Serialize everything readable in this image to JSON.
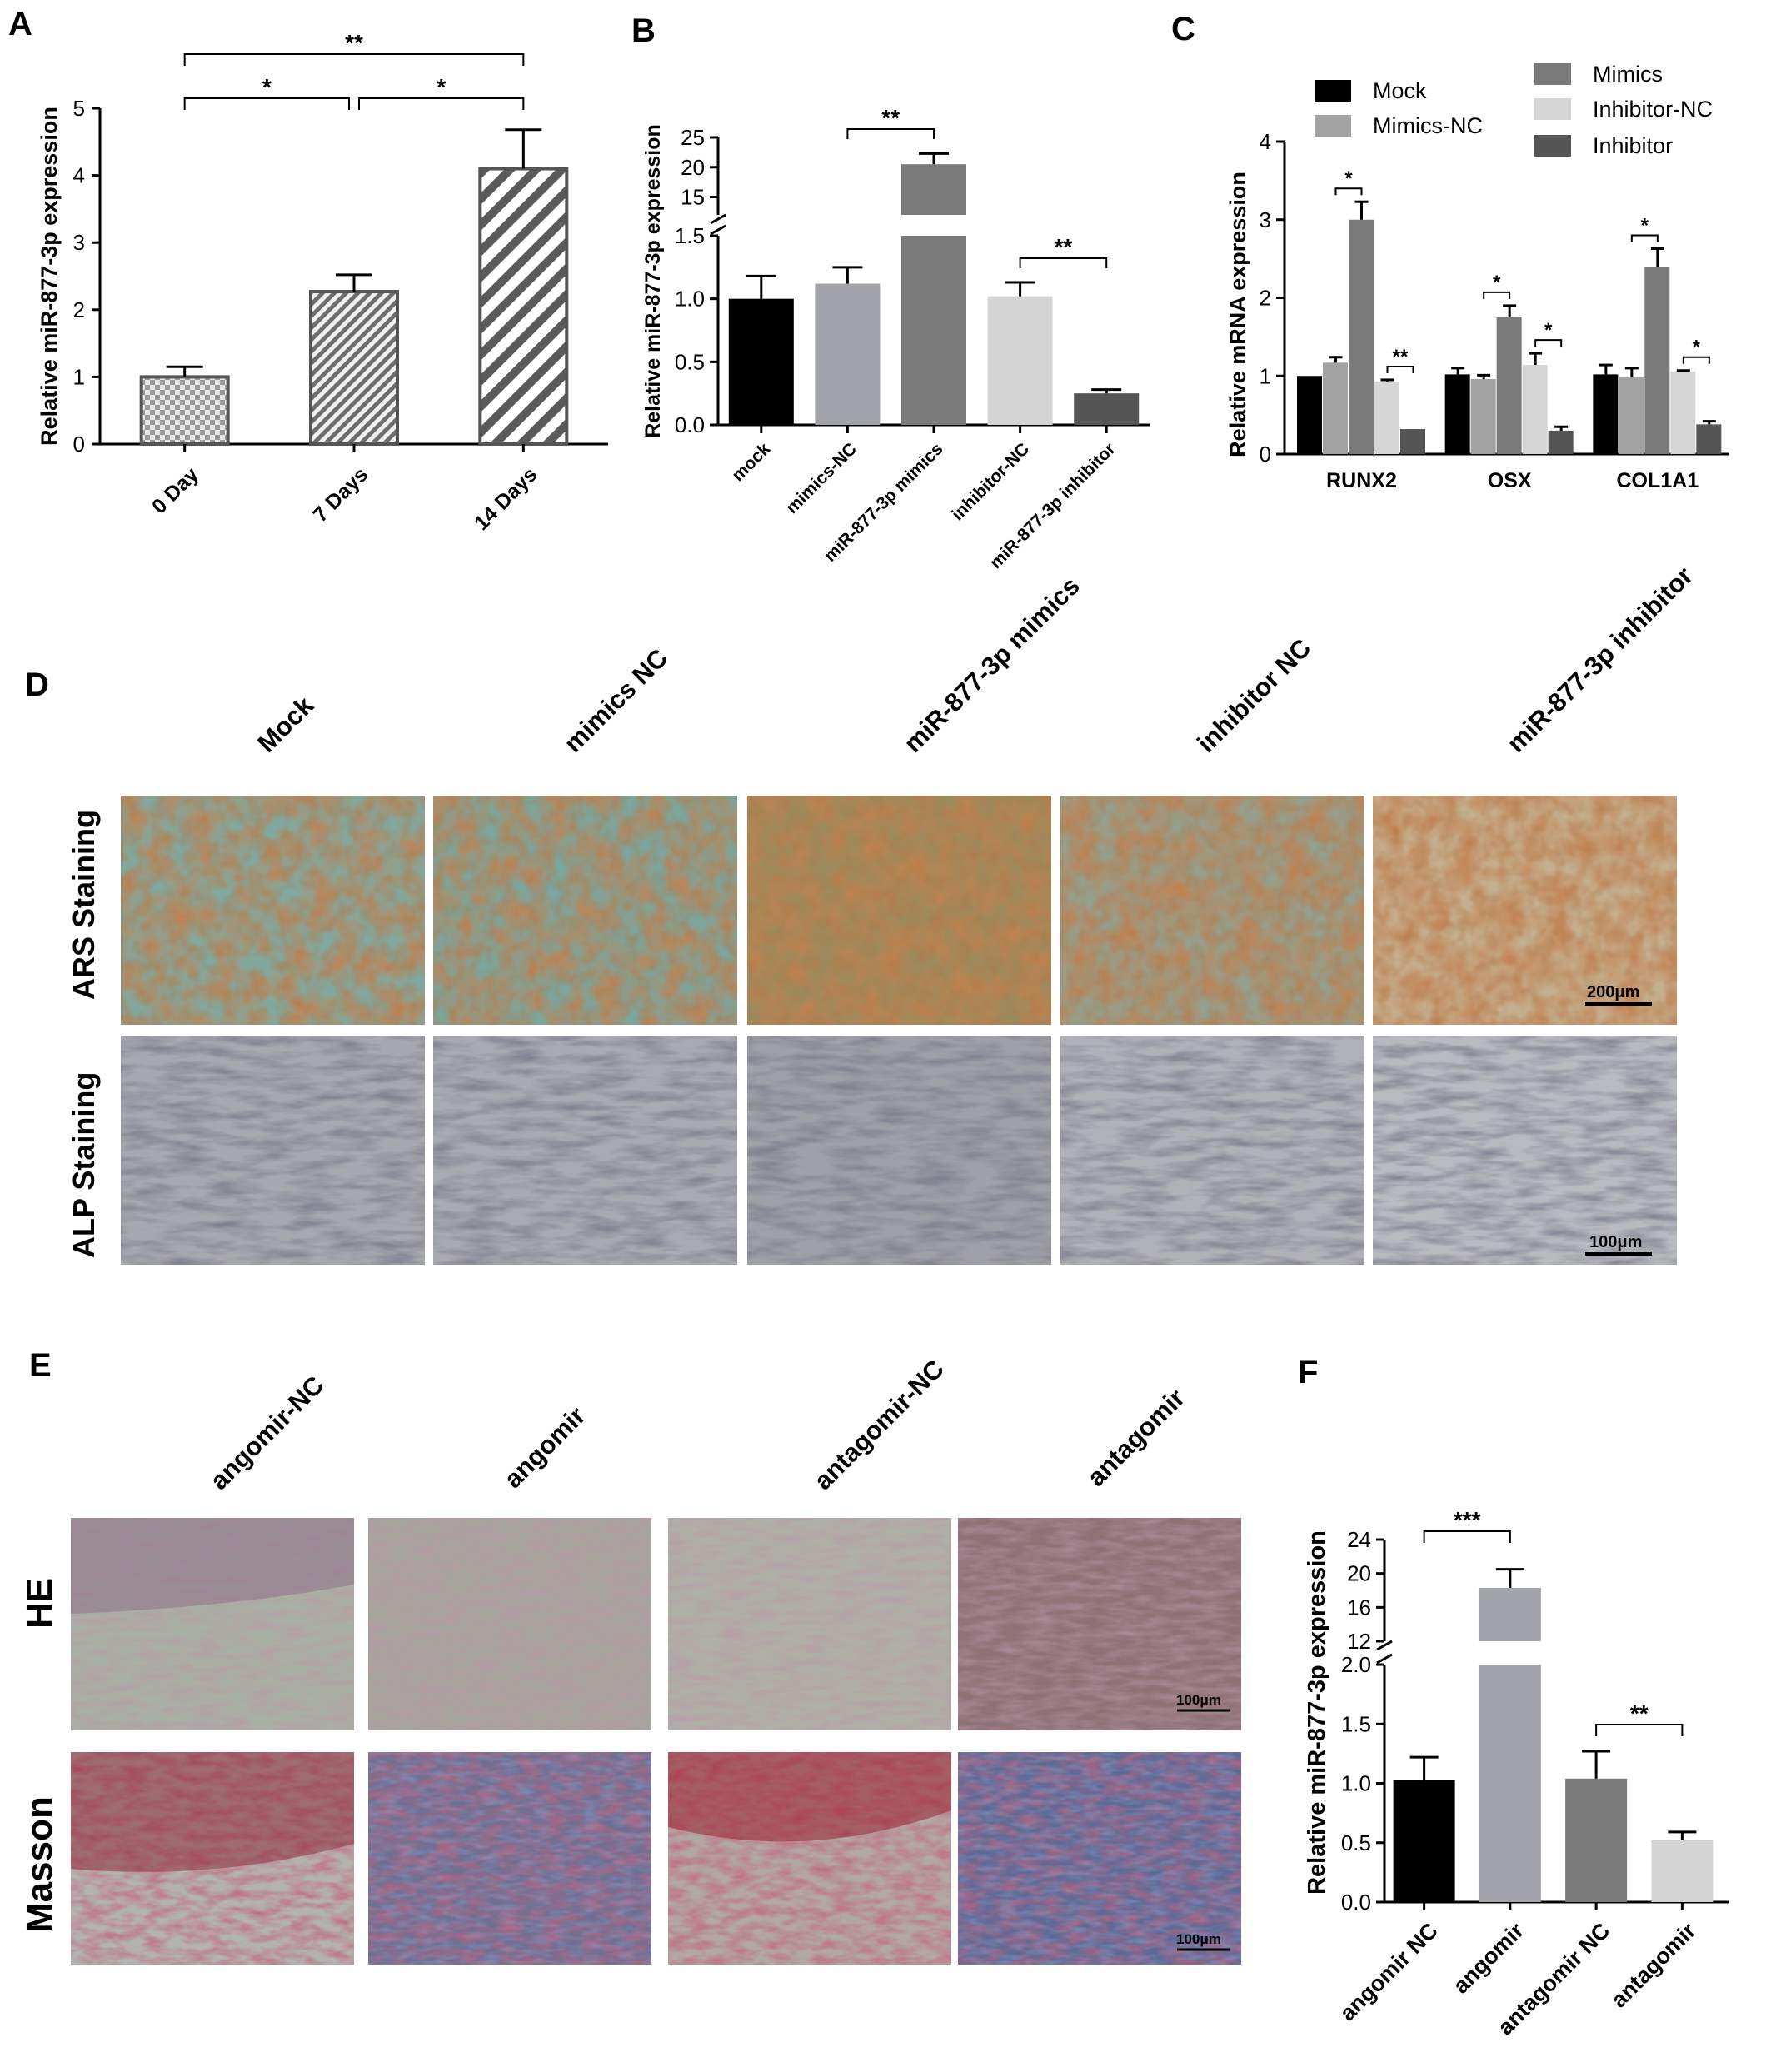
{
  "panels": {
    "A": "A",
    "B": "B",
    "C": "C",
    "D": "D",
    "E": "E",
    "F": "F"
  },
  "chart_data": [
    {
      "id": "A",
      "type": "bar",
      "ylabel": "Relative miR-877-3p expression",
      "ylim": [
        0,
        5
      ],
      "yticks": [
        "0",
        "1",
        "2",
        "3",
        "4",
        "5"
      ],
      "categories": [
        "0 Day",
        "7 Days",
        "14 Days"
      ],
      "values": [
        1.0,
        2.27,
        4.1
      ],
      "errors": [
        0.15,
        0.25,
        0.58
      ],
      "patterns": [
        "checker",
        "diagonal-fine",
        "diagonal-wide"
      ],
      "significance": [
        {
          "from": 0,
          "to": 2,
          "label": "**"
        },
        {
          "from": 0,
          "to": 1,
          "label": "*"
        },
        {
          "from": 1,
          "to": 2,
          "label": "*"
        }
      ]
    },
    {
      "id": "B",
      "type": "bar",
      "ylabel": "Relative miR-877-3p expression",
      "axis_break": {
        "lower": [
          0,
          1.5
        ],
        "upper": [
          12,
          25
        ]
      },
      "yticks_lower": [
        "0.0",
        "0.5",
        "1.0",
        "1.5"
      ],
      "yticks_upper": [
        "15",
        "20",
        "25"
      ],
      "categories": [
        "mock",
        "mimics-NC",
        "miR-877-3p mimics",
        "inhibitor-NC",
        "miR-877-3p inhibitor"
      ],
      "values": [
        1.0,
        1.12,
        20.5,
        1.02,
        0.25
      ],
      "errors": [
        0.18,
        0.13,
        1.8,
        0.11,
        0.03
      ],
      "colors": [
        "#000000",
        "#a2a2aa",
        "#7a7a7a",
        "#d4d4d4",
        "#555555"
      ],
      "significance": [
        {
          "from": 1,
          "to": 2,
          "label": "**"
        },
        {
          "from": 3,
          "to": 4,
          "label": "**"
        }
      ]
    },
    {
      "id": "C",
      "type": "bar",
      "ylabel": "Relative mRNA expression",
      "ylim": [
        0,
        4
      ],
      "yticks": [
        "0",
        "1",
        "2",
        "3",
        "4"
      ],
      "categories": [
        "RUNX2",
        "OSX",
        "COL1A1"
      ],
      "legend": [
        "Mock",
        "Mimics-NC",
        "Mimics",
        "Inhibitor-NC",
        "Inhibitor"
      ],
      "colors": [
        "#000000",
        "#a2a2a2",
        "#7a7a7a",
        "#d6d6d6",
        "#555555"
      ],
      "series": [
        {
          "name": "Mock",
          "values": [
            1.0,
            1.02,
            1.02
          ],
          "errors": [
            0.0,
            0.08,
            0.12
          ]
        },
        {
          "name": "Mimics-NC",
          "values": [
            1.17,
            0.96,
            0.98
          ],
          "errors": [
            0.07,
            0.05,
            0.12
          ]
        },
        {
          "name": "Mimics",
          "values": [
            3.0,
            1.75,
            2.4
          ],
          "errors": [
            0.23,
            0.15,
            0.23
          ]
        },
        {
          "name": "Inhibitor-NC",
          "values": [
            0.93,
            1.14,
            1.06
          ],
          "errors": [
            0.02,
            0.15,
            0.01
          ]
        },
        {
          "name": "Inhibitor",
          "values": [
            0.32,
            0.3,
            0.38
          ],
          "errors": [
            0.0,
            0.05,
            0.04
          ]
        }
      ],
      "significance": [
        {
          "group": 0,
          "from": 1,
          "to": 2,
          "label": "*"
        },
        {
          "group": 0,
          "from": 3,
          "to": 4,
          "label": "**"
        },
        {
          "group": 1,
          "from": 1,
          "to": 2,
          "label": "*"
        },
        {
          "group": 1,
          "from": 3,
          "to": 4,
          "label": "*"
        },
        {
          "group": 2,
          "from": 1,
          "to": 2,
          "label": "*"
        },
        {
          "group": 2,
          "from": 3,
          "to": 4,
          "label": "*"
        }
      ]
    },
    {
      "id": "F",
      "type": "bar",
      "ylabel": "Relative miR-877-3p expression",
      "axis_break": {
        "lower": [
          0,
          2.0
        ],
        "upper": [
          12,
          24
        ]
      },
      "yticks_lower": [
        "0.0",
        "0.5",
        "1.0",
        "1.5",
        "2.0"
      ],
      "yticks_upper": [
        "12",
        "16",
        "20",
        "24"
      ],
      "categories": [
        "angomir NC",
        "angomir",
        "antagomir NC",
        "antagomir"
      ],
      "values": [
        1.03,
        18.3,
        1.04,
        0.52
      ],
      "errors": [
        0.19,
        2.2,
        0.23,
        0.07
      ],
      "colors": [
        "#000000",
        "#a2a2aa",
        "#7a7a7a",
        "#d4d4d4"
      ],
      "significance": [
        {
          "from": 0,
          "to": 1,
          "label": "***"
        },
        {
          "from": 2,
          "to": 3,
          "label": "**"
        }
      ]
    }
  ],
  "panel_D": {
    "columns": [
      "Mock",
      "mimics NC",
      "miR-877-3p mimics",
      "inhibitor NC",
      "miR-877-3p inhibitor"
    ],
    "rows": [
      "ARS Staining",
      "ALP Staining"
    ],
    "scale_bars": [
      "200μm",
      "100μm"
    ]
  },
  "panel_E": {
    "columns": [
      "angomir-NC",
      "angomir",
      "antagomir-NC",
      "antagomir"
    ],
    "rows": [
      "HE",
      "Masson"
    ],
    "scale_bars": [
      "100μm",
      "100μm"
    ]
  }
}
